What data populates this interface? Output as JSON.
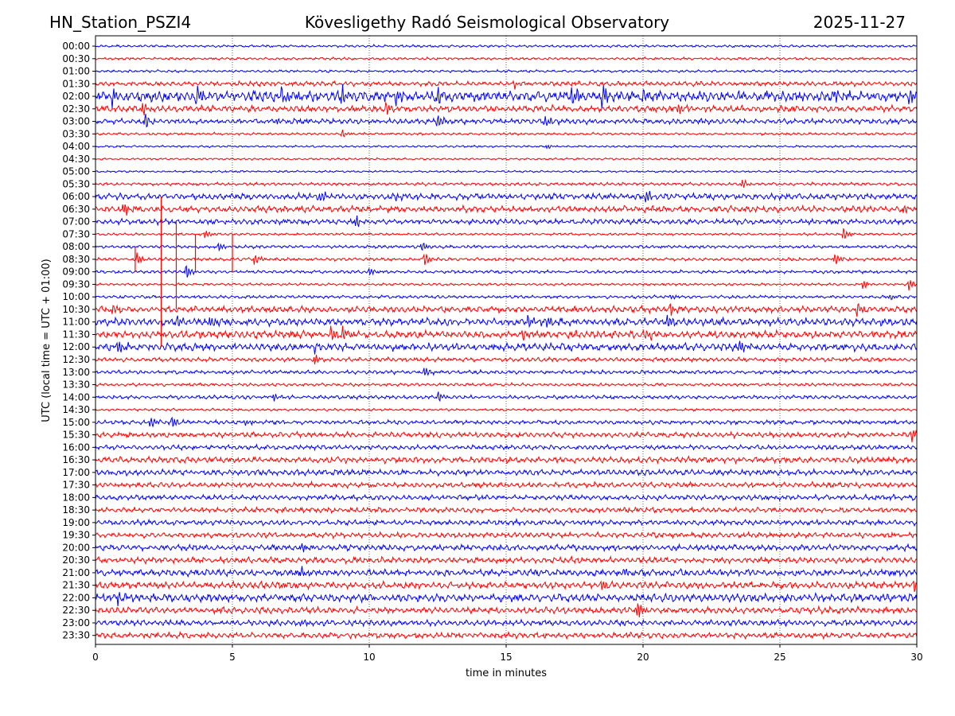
{
  "chart_data": {
    "type": "line",
    "title_left": "HN_Station_PSZI4",
    "title_center": "Kövesligethy Radó Seismological Observatory",
    "title_right": "2025-11-27",
    "xlabel": "time in minutes",
    "ylabel": "UTC (local time = UTC + 01:00)",
    "xlim": [
      0,
      30
    ],
    "xticks": [
      0,
      5,
      10,
      15,
      20,
      25,
      30
    ],
    "grid": "vertical dotted at each x tick",
    "colors": [
      "#0000ff",
      "#ff0000"
    ],
    "series": [
      {
        "name": "00:00",
        "amplitude": 0.12,
        "events": []
      },
      {
        "name": "00:30",
        "amplitude": 0.12,
        "events": []
      },
      {
        "name": "01:00",
        "amplitude": 0.12,
        "events": []
      },
      {
        "name": "01:30",
        "amplitude": 0.22,
        "events": [
          {
            "t": 15.3,
            "a": 0.35
          }
        ]
      },
      {
        "name": "02:00",
        "amplitude": 0.5,
        "events": [
          {
            "t": 0.6,
            "a": 0.7
          },
          {
            "t": 3.7,
            "a": 1.0
          },
          {
            "t": 6.8,
            "a": 0.9
          },
          {
            "t": 9.0,
            "a": 1.0
          },
          {
            "t": 11.0,
            "a": 0.9
          },
          {
            "t": 12.5,
            "a": 0.9
          },
          {
            "t": 17.4,
            "a": 0.9
          },
          {
            "t": 18.5,
            "a": 1.0
          },
          {
            "t": 20.0,
            "a": 0.7
          },
          {
            "t": 27.0,
            "a": 0.6
          },
          {
            "t": 29.7,
            "a": 0.7
          }
        ]
      },
      {
        "name": "02:30",
        "amplitude": 0.3,
        "events": [
          {
            "t": 1.7,
            "a": 0.7
          },
          {
            "t": 10.6,
            "a": 0.6
          },
          {
            "t": 21.3,
            "a": 0.5
          }
        ]
      },
      {
        "name": "03:00",
        "amplitude": 0.25,
        "events": [
          {
            "t": 1.8,
            "a": 0.8
          },
          {
            "t": 6.6,
            "a": 0.4
          },
          {
            "t": 12.5,
            "a": 0.7
          },
          {
            "t": 16.4,
            "a": 0.6
          }
        ]
      },
      {
        "name": "03:30",
        "amplitude": 0.12,
        "events": [
          {
            "t": 9.0,
            "a": 0.35
          }
        ]
      },
      {
        "name": "04:00",
        "amplitude": 0.1,
        "events": [
          {
            "t": 16.5,
            "a": 0.2
          }
        ]
      },
      {
        "name": "04:30",
        "amplitude": 0.1,
        "events": []
      },
      {
        "name": "05:00",
        "amplitude": 0.1,
        "events": []
      },
      {
        "name": "05:30",
        "amplitude": 0.15,
        "events": [
          {
            "t": 23.6,
            "a": 0.5
          }
        ]
      },
      {
        "name": "06:00",
        "amplitude": 0.3,
        "events": [
          {
            "t": 8.2,
            "a": 0.7
          },
          {
            "t": 11.0,
            "a": 0.4
          },
          {
            "t": 20.1,
            "a": 0.7
          }
        ]
      },
      {
        "name": "06:30",
        "amplitude": 0.3,
        "events": [
          {
            "t": 1.0,
            "a": 0.7
          },
          {
            "t": 29.5,
            "a": 0.5
          }
        ]
      },
      {
        "name": "07:00",
        "amplitude": 0.25,
        "events": [
          {
            "t": 9.5,
            "a": 0.6
          }
        ]
      },
      {
        "name": "07:30",
        "amplitude": 0.12,
        "events": [
          {
            "t": 4.0,
            "a": 0.4
          },
          {
            "t": 27.3,
            "a": 0.6
          }
        ]
      },
      {
        "name": "08:00",
        "amplitude": 0.15,
        "events": [
          {
            "t": 4.5,
            "a": 0.4
          },
          {
            "t": 11.9,
            "a": 0.5
          }
        ]
      },
      {
        "name": "08:30",
        "amplitude": 0.15,
        "events": [
          {
            "t": 1.5,
            "a": 0.6
          },
          {
            "t": 5.8,
            "a": 0.5
          },
          {
            "t": 12.0,
            "a": 0.7
          },
          {
            "t": 27.0,
            "a": 0.6
          }
        ]
      },
      {
        "name": "09:00",
        "amplitude": 0.15,
        "events": [
          {
            "t": 3.3,
            "a": 0.7
          },
          {
            "t": 10.0,
            "a": 0.4
          }
        ]
      },
      {
        "name": "09:30",
        "amplitude": 0.12,
        "events": [
          {
            "t": 28.0,
            "a": 0.5
          },
          {
            "t": 29.7,
            "a": 0.6
          }
        ]
      },
      {
        "name": "10:00",
        "amplitude": 0.15,
        "events": [
          {
            "t": 21.0,
            "a": 0.3
          },
          {
            "t": 29.0,
            "a": 0.3
          }
        ]
      },
      {
        "name": "10:30",
        "amplitude": 0.3,
        "events": [
          {
            "t": 0.6,
            "a": 0.6
          },
          {
            "t": 21.0,
            "a": 0.5
          },
          {
            "t": 27.8,
            "a": 0.7
          }
        ]
      },
      {
        "name": "11:00",
        "amplitude": 0.35,
        "events": [
          {
            "t": 3.0,
            "a": 0.6
          },
          {
            "t": 4.2,
            "a": 0.5
          },
          {
            "t": 15.8,
            "a": 0.7
          },
          {
            "t": 16.5,
            "a": 0.6
          },
          {
            "t": 20.9,
            "a": 0.7
          }
        ]
      },
      {
        "name": "11:30",
        "amplitude": 0.35,
        "events": [
          {
            "t": 8.6,
            "a": 0.7
          },
          {
            "t": 9.0,
            "a": 0.6
          },
          {
            "t": 15.6,
            "a": 0.6
          },
          {
            "t": 20.1,
            "a": 0.6
          }
        ]
      },
      {
        "name": "12:00",
        "amplitude": 0.35,
        "events": [
          {
            "t": 0.8,
            "a": 0.6
          },
          {
            "t": 8.0,
            "a": 0.5
          },
          {
            "t": 23.5,
            "a": 0.5
          }
        ]
      },
      {
        "name": "12:30",
        "amplitude": 0.2,
        "events": [
          {
            "t": 8.0,
            "a": 0.5
          }
        ]
      },
      {
        "name": "13:00",
        "amplitude": 0.18,
        "events": [
          {
            "t": 12.0,
            "a": 0.5
          }
        ]
      },
      {
        "name": "13:30",
        "amplitude": 0.15,
        "events": []
      },
      {
        "name": "14:00",
        "amplitude": 0.18,
        "events": [
          {
            "t": 6.5,
            "a": 0.4
          },
          {
            "t": 12.5,
            "a": 0.5
          }
        ]
      },
      {
        "name": "14:30",
        "amplitude": 0.12,
        "events": []
      },
      {
        "name": "15:00",
        "amplitude": 0.2,
        "events": [
          {
            "t": 2.0,
            "a": 0.6
          },
          {
            "t": 2.8,
            "a": 0.6
          },
          {
            "t": 5.5,
            "a": 0.35
          }
        ]
      },
      {
        "name": "15:30",
        "amplitude": 0.25,
        "events": [
          {
            "t": 29.8,
            "a": 0.7
          }
        ]
      },
      {
        "name": "16:00",
        "amplitude": 0.22,
        "events": []
      },
      {
        "name": "16:30",
        "amplitude": 0.28,
        "events": []
      },
      {
        "name": "17:00",
        "amplitude": 0.28,
        "events": []
      },
      {
        "name": "17:30",
        "amplitude": 0.25,
        "events": []
      },
      {
        "name": "18:00",
        "amplitude": 0.25,
        "events": []
      },
      {
        "name": "18:30",
        "amplitude": 0.25,
        "events": []
      },
      {
        "name": "19:00",
        "amplitude": 0.25,
        "events": []
      },
      {
        "name": "19:30",
        "amplitude": 0.25,
        "events": []
      },
      {
        "name": "20:00",
        "amplitude": 0.28,
        "events": [
          {
            "t": 7.5,
            "a": 0.4
          }
        ]
      },
      {
        "name": "20:30",
        "amplitude": 0.28,
        "events": []
      },
      {
        "name": "21:00",
        "amplitude": 0.32,
        "events": [
          {
            "t": 7.5,
            "a": 0.5
          },
          {
            "t": 19.3,
            "a": 0.5
          }
        ]
      },
      {
        "name": "21:30",
        "amplitude": 0.32,
        "events": [
          {
            "t": 18.5,
            "a": 0.5
          },
          {
            "t": 29.9,
            "a": 0.6
          }
        ]
      },
      {
        "name": "22:00",
        "amplitude": 0.38,
        "events": [
          {
            "t": 0.8,
            "a": 0.6
          }
        ]
      },
      {
        "name": "22:30",
        "amplitude": 0.3,
        "events": [
          {
            "t": 19.8,
            "a": 0.8
          }
        ]
      },
      {
        "name": "23:00",
        "amplitude": 0.28,
        "events": [
          {
            "t": 7.5,
            "a": 0.5
          }
        ]
      },
      {
        "name": "23:30",
        "amplitude": 0.28,
        "events": []
      }
    ],
    "spikes": [
      {
        "t": 1.45,
        "from": "08:00",
        "to": "09:00",
        "color": "#ff0000"
      },
      {
        "t": 2.4,
        "from": "06:00",
        "to": "12:00",
        "color": "#ff0000"
      },
      {
        "t": 2.95,
        "from": "07:00",
        "to": "10:30",
        "color": "#ff0000"
      },
      {
        "t": 3.65,
        "from": "07:30",
        "to": "09:00",
        "color": "#ff0000"
      },
      {
        "t": 5.0,
        "from": "07:30",
        "to": "09:00",
        "color": "#ff0000"
      }
    ]
  }
}
